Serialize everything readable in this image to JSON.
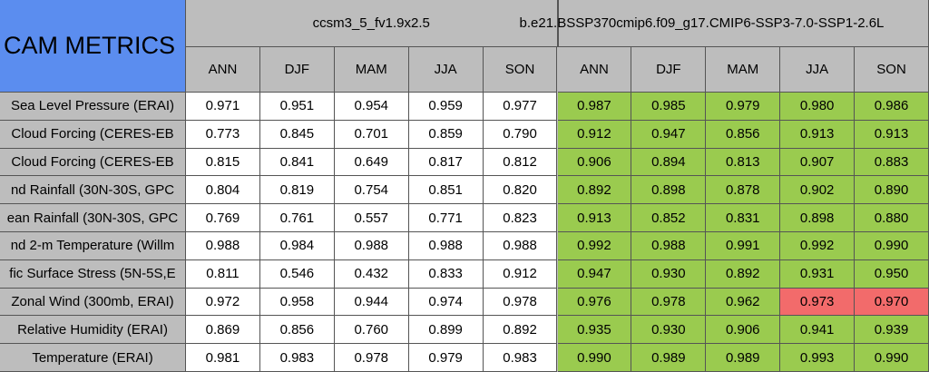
{
  "table": {
    "title": "CAM METRICS",
    "groups": [
      "ccsm3_5_fv1.9x2.5",
      "b.e21.BSSP370cmip6.f09_g17.CMIP6-SSP3-7.0-SSP1-2.6L"
    ],
    "columns": [
      "ANN",
      "DJF",
      "MAM",
      "JJA",
      "SON",
      "ANN",
      "DJF",
      "MAM",
      "JJA",
      "SON"
    ],
    "rows": [
      {
        "label": "Sea Level Pressure (ERAI)",
        "values": [
          "0.971",
          "0.951",
          "0.954",
          "0.959",
          "0.977",
          "0.987",
          "0.985",
          "0.979",
          "0.980",
          "0.986"
        ],
        "fill": [
          "#ffffff",
          "#ffffff",
          "#ffffff",
          "#ffffff",
          "#ffffff",
          "#9acb4f",
          "#9acb4f",
          "#9acb4f",
          "#9acb4f",
          "#9acb4f"
        ]
      },
      {
        "label": "Cloud Forcing (CERES-EB",
        "values": [
          "0.773",
          "0.845",
          "0.701",
          "0.859",
          "0.790",
          "0.912",
          "0.947",
          "0.856",
          "0.913",
          "0.913"
        ],
        "fill": [
          "#ffffff",
          "#ffffff",
          "#ffffff",
          "#ffffff",
          "#ffffff",
          "#9acb4f",
          "#9acb4f",
          "#9acb4f",
          "#9acb4f",
          "#9acb4f"
        ]
      },
      {
        "label": "Cloud Forcing (CERES-EB",
        "values": [
          "0.815",
          "0.841",
          "0.649",
          "0.817",
          "0.812",
          "0.906",
          "0.894",
          "0.813",
          "0.907",
          "0.883"
        ],
        "fill": [
          "#ffffff",
          "#ffffff",
          "#ffffff",
          "#ffffff",
          "#ffffff",
          "#9acb4f",
          "#9acb4f",
          "#9acb4f",
          "#9acb4f",
          "#9acb4f"
        ]
      },
      {
        "label": "nd Rainfall (30N-30S, GPC",
        "values": [
          "0.804",
          "0.819",
          "0.754",
          "0.851",
          "0.820",
          "0.892",
          "0.898",
          "0.878",
          "0.902",
          "0.890"
        ],
        "fill": [
          "#ffffff",
          "#ffffff",
          "#ffffff",
          "#ffffff",
          "#ffffff",
          "#9acb4f",
          "#9acb4f",
          "#9acb4f",
          "#9acb4f",
          "#9acb4f"
        ]
      },
      {
        "label": "ean Rainfall (30N-30S, GPC",
        "values": [
          "0.769",
          "0.761",
          "0.557",
          "0.771",
          "0.823",
          "0.913",
          "0.852",
          "0.831",
          "0.898",
          "0.880"
        ],
        "fill": [
          "#ffffff",
          "#ffffff",
          "#ffffff",
          "#ffffff",
          "#ffffff",
          "#9acb4f",
          "#9acb4f",
          "#9acb4f",
          "#9acb4f",
          "#9acb4f"
        ]
      },
      {
        "label": "nd 2-m Temperature (Willm",
        "values": [
          "0.988",
          "0.984",
          "0.988",
          "0.988",
          "0.988",
          "0.992",
          "0.988",
          "0.991",
          "0.992",
          "0.990"
        ],
        "fill": [
          "#ffffff",
          "#ffffff",
          "#ffffff",
          "#ffffff",
          "#ffffff",
          "#9acb4f",
          "#9acb4f",
          "#9acb4f",
          "#9acb4f",
          "#9acb4f"
        ]
      },
      {
        "label": "fic Surface Stress (5N-5S,E",
        "values": [
          "0.811",
          "0.546",
          "0.432",
          "0.833",
          "0.912",
          "0.947",
          "0.930",
          "0.892",
          "0.931",
          "0.950"
        ],
        "fill": [
          "#ffffff",
          "#ffffff",
          "#ffffff",
          "#ffffff",
          "#ffffff",
          "#9acb4f",
          "#9acb4f",
          "#9acb4f",
          "#9acb4f",
          "#9acb4f"
        ]
      },
      {
        "label": "Zonal Wind (300mb, ERAI)",
        "values": [
          "0.972",
          "0.958",
          "0.944",
          "0.974",
          "0.978",
          "0.976",
          "0.978",
          "0.962",
          "0.973",
          "0.970"
        ],
        "fill": [
          "#ffffff",
          "#ffffff",
          "#ffffff",
          "#ffffff",
          "#ffffff",
          "#9acb4f",
          "#9acb4f",
          "#9acb4f",
          "#f26b6b",
          "#f26b6b"
        ]
      },
      {
        "label": "Relative Humidity (ERAI)",
        "values": [
          "0.869",
          "0.856",
          "0.760",
          "0.899",
          "0.892",
          "0.935",
          "0.930",
          "0.906",
          "0.941",
          "0.939"
        ],
        "fill": [
          "#ffffff",
          "#ffffff",
          "#ffffff",
          "#ffffff",
          "#ffffff",
          "#9acb4f",
          "#9acb4f",
          "#9acb4f",
          "#9acb4f",
          "#9acb4f"
        ]
      },
      {
        "label": "Temperature (ERAI)",
        "values": [
          "0.981",
          "0.983",
          "0.978",
          "0.979",
          "0.983",
          "0.990",
          "0.989",
          "0.989",
          "0.993",
          "0.990"
        ],
        "fill": [
          "#ffffff",
          "#ffffff",
          "#ffffff",
          "#ffffff",
          "#ffffff",
          "#9acb4f",
          "#9acb4f",
          "#9acb4f",
          "#9acb4f",
          "#9acb4f"
        ]
      }
    ]
  }
}
